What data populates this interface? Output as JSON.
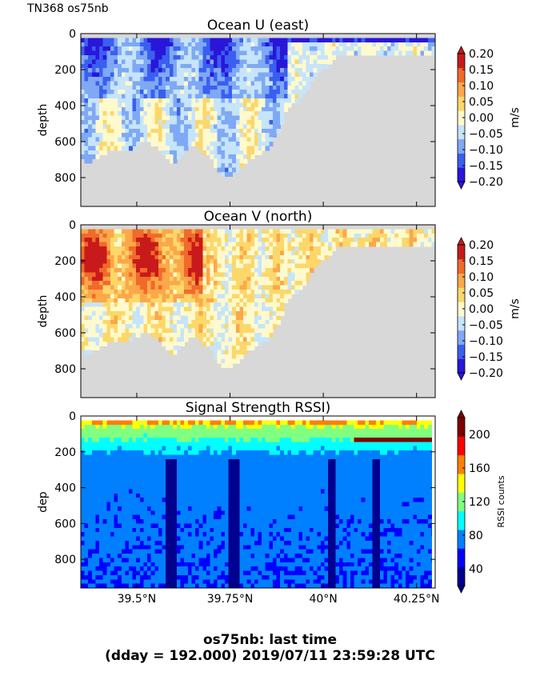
{
  "figure": {
    "top_label": "TN368 os75nb",
    "footer_line1": "os75nb: last time",
    "footer_line2": "(dday = 192.000) 2019/07/11 23:59:28 UTC"
  },
  "colors": {
    "land_mask": "#d8d8d8",
    "velocity_scale": [
      "#2a16d9",
      "#3a5ff0",
      "#7fa9f5",
      "#c6e4fa",
      "#fffacd",
      "#fcd76a",
      "#fca74a",
      "#f06a2a",
      "#c81a1a"
    ],
    "rssi_scale": [
      "#00008f",
      "#0000ff",
      "#0080ff",
      "#00ffff",
      "#80ff80",
      "#ffff00",
      "#ff8000",
      "#ff0000",
      "#800000"
    ]
  },
  "chart_data": [
    {
      "type": "heatmap",
      "title": "Ocean U (east)",
      "xlabel": "",
      "ylabel": "depth",
      "ylim": [
        960,
        0
      ],
      "yticks": [
        0,
        200,
        400,
        600,
        800
      ],
      "xlim": [
        39.35,
        40.3
      ],
      "xticks": [
        39.5,
        39.75,
        40.0,
        40.25
      ],
      "colorbar": {
        "label": "m/s",
        "range": [
          -0.2,
          0.2
        ],
        "ticks": [
          "0.20",
          "0.15",
          "0.10",
          "0.05",
          "0.00",
          "−0.05",
          "−0.10",
          "−0.15",
          "−0.20"
        ]
      },
      "bottom_depth_profile": {
        "lat": [
          39.35,
          39.37,
          39.4,
          39.42,
          39.45,
          39.48,
          39.5,
          39.53,
          39.56,
          39.58,
          39.6,
          39.63,
          39.66,
          39.7,
          39.73,
          39.76,
          39.79,
          39.82,
          39.85,
          39.88,
          39.9,
          39.93,
          39.96,
          39.98,
          40.0,
          40.02,
          40.05,
          40.1,
          40.15,
          40.2,
          40.25,
          40.3
        ],
        "depth": [
          690,
          720,
          680,
          660,
          640,
          650,
          620,
          600,
          640,
          700,
          720,
          640,
          620,
          700,
          800,
          780,
          720,
          680,
          640,
          560,
          420,
          380,
          300,
          230,
          200,
          160,
          110,
          110,
          110,
          110,
          110,
          110
        ]
      },
      "pattern": "strong negative (eastward) velocity columns 39.4–39.85°N near surface; weak positive patches near 40°N"
    },
    {
      "type": "heatmap",
      "title": "Ocean V (north)",
      "xlabel": "",
      "ylabel": "depth",
      "ylim": [
        960,
        0
      ],
      "yticks": [
        0,
        200,
        400,
        600,
        800
      ],
      "xlim": [
        39.35,
        40.3
      ],
      "xticks": [
        39.5,
        39.75,
        40.0,
        40.25
      ],
      "colorbar": {
        "label": "m/s",
        "range": [
          -0.2,
          0.2
        ],
        "ticks": [
          "0.20",
          "0.15",
          "0.10",
          "0.05",
          "0.00",
          "−0.05",
          "−0.10",
          "−0.15",
          "−0.20"
        ]
      },
      "bottom_depth_profile": {
        "lat": [
          39.35,
          39.37,
          39.4,
          39.42,
          39.45,
          39.48,
          39.5,
          39.53,
          39.56,
          39.58,
          39.6,
          39.63,
          39.66,
          39.7,
          39.73,
          39.76,
          39.79,
          39.82,
          39.85,
          39.88,
          39.9,
          39.93,
          39.96,
          39.98,
          40.0,
          40.02,
          40.05,
          40.1,
          40.15,
          40.2,
          40.25,
          40.3
        ],
        "depth": [
          690,
          720,
          680,
          660,
          640,
          650,
          620,
          600,
          640,
          700,
          720,
          640,
          620,
          700,
          800,
          780,
          720,
          680,
          640,
          560,
          420,
          380,
          300,
          230,
          200,
          160,
          110,
          110,
          110,
          110,
          110,
          110
        ]
      },
      "pattern": "strong positive (northward) velocity cores 39.4–39.65°N at 100–300 m; weak flow offshore"
    },
    {
      "type": "heatmap",
      "title": "Signal Strength RSSI)",
      "xlabel": "",
      "ylabel": "dep",
      "ylim": [
        960,
        0
      ],
      "yticks": [
        0,
        200,
        400,
        600,
        800
      ],
      "xlim": [
        39.35,
        40.3
      ],
      "xticks": [
        39.5,
        39.75,
        40.0,
        40.25
      ],
      "xtick_labels": [
        "39.5°N",
        "39.75°N",
        "40°N",
        "40.25°N"
      ],
      "colorbar": {
        "label": "RSSI counts",
        "range": [
          20,
          220
        ],
        "ticks": [
          "200",
          "160",
          "120",
          "80",
          "40"
        ]
      },
      "pattern": "high RSSI (200+) at surface decaying to ~60–80 below 250 m; low-signal vertical stripes near 39.6, 39.75 and 40.0°N"
    }
  ]
}
